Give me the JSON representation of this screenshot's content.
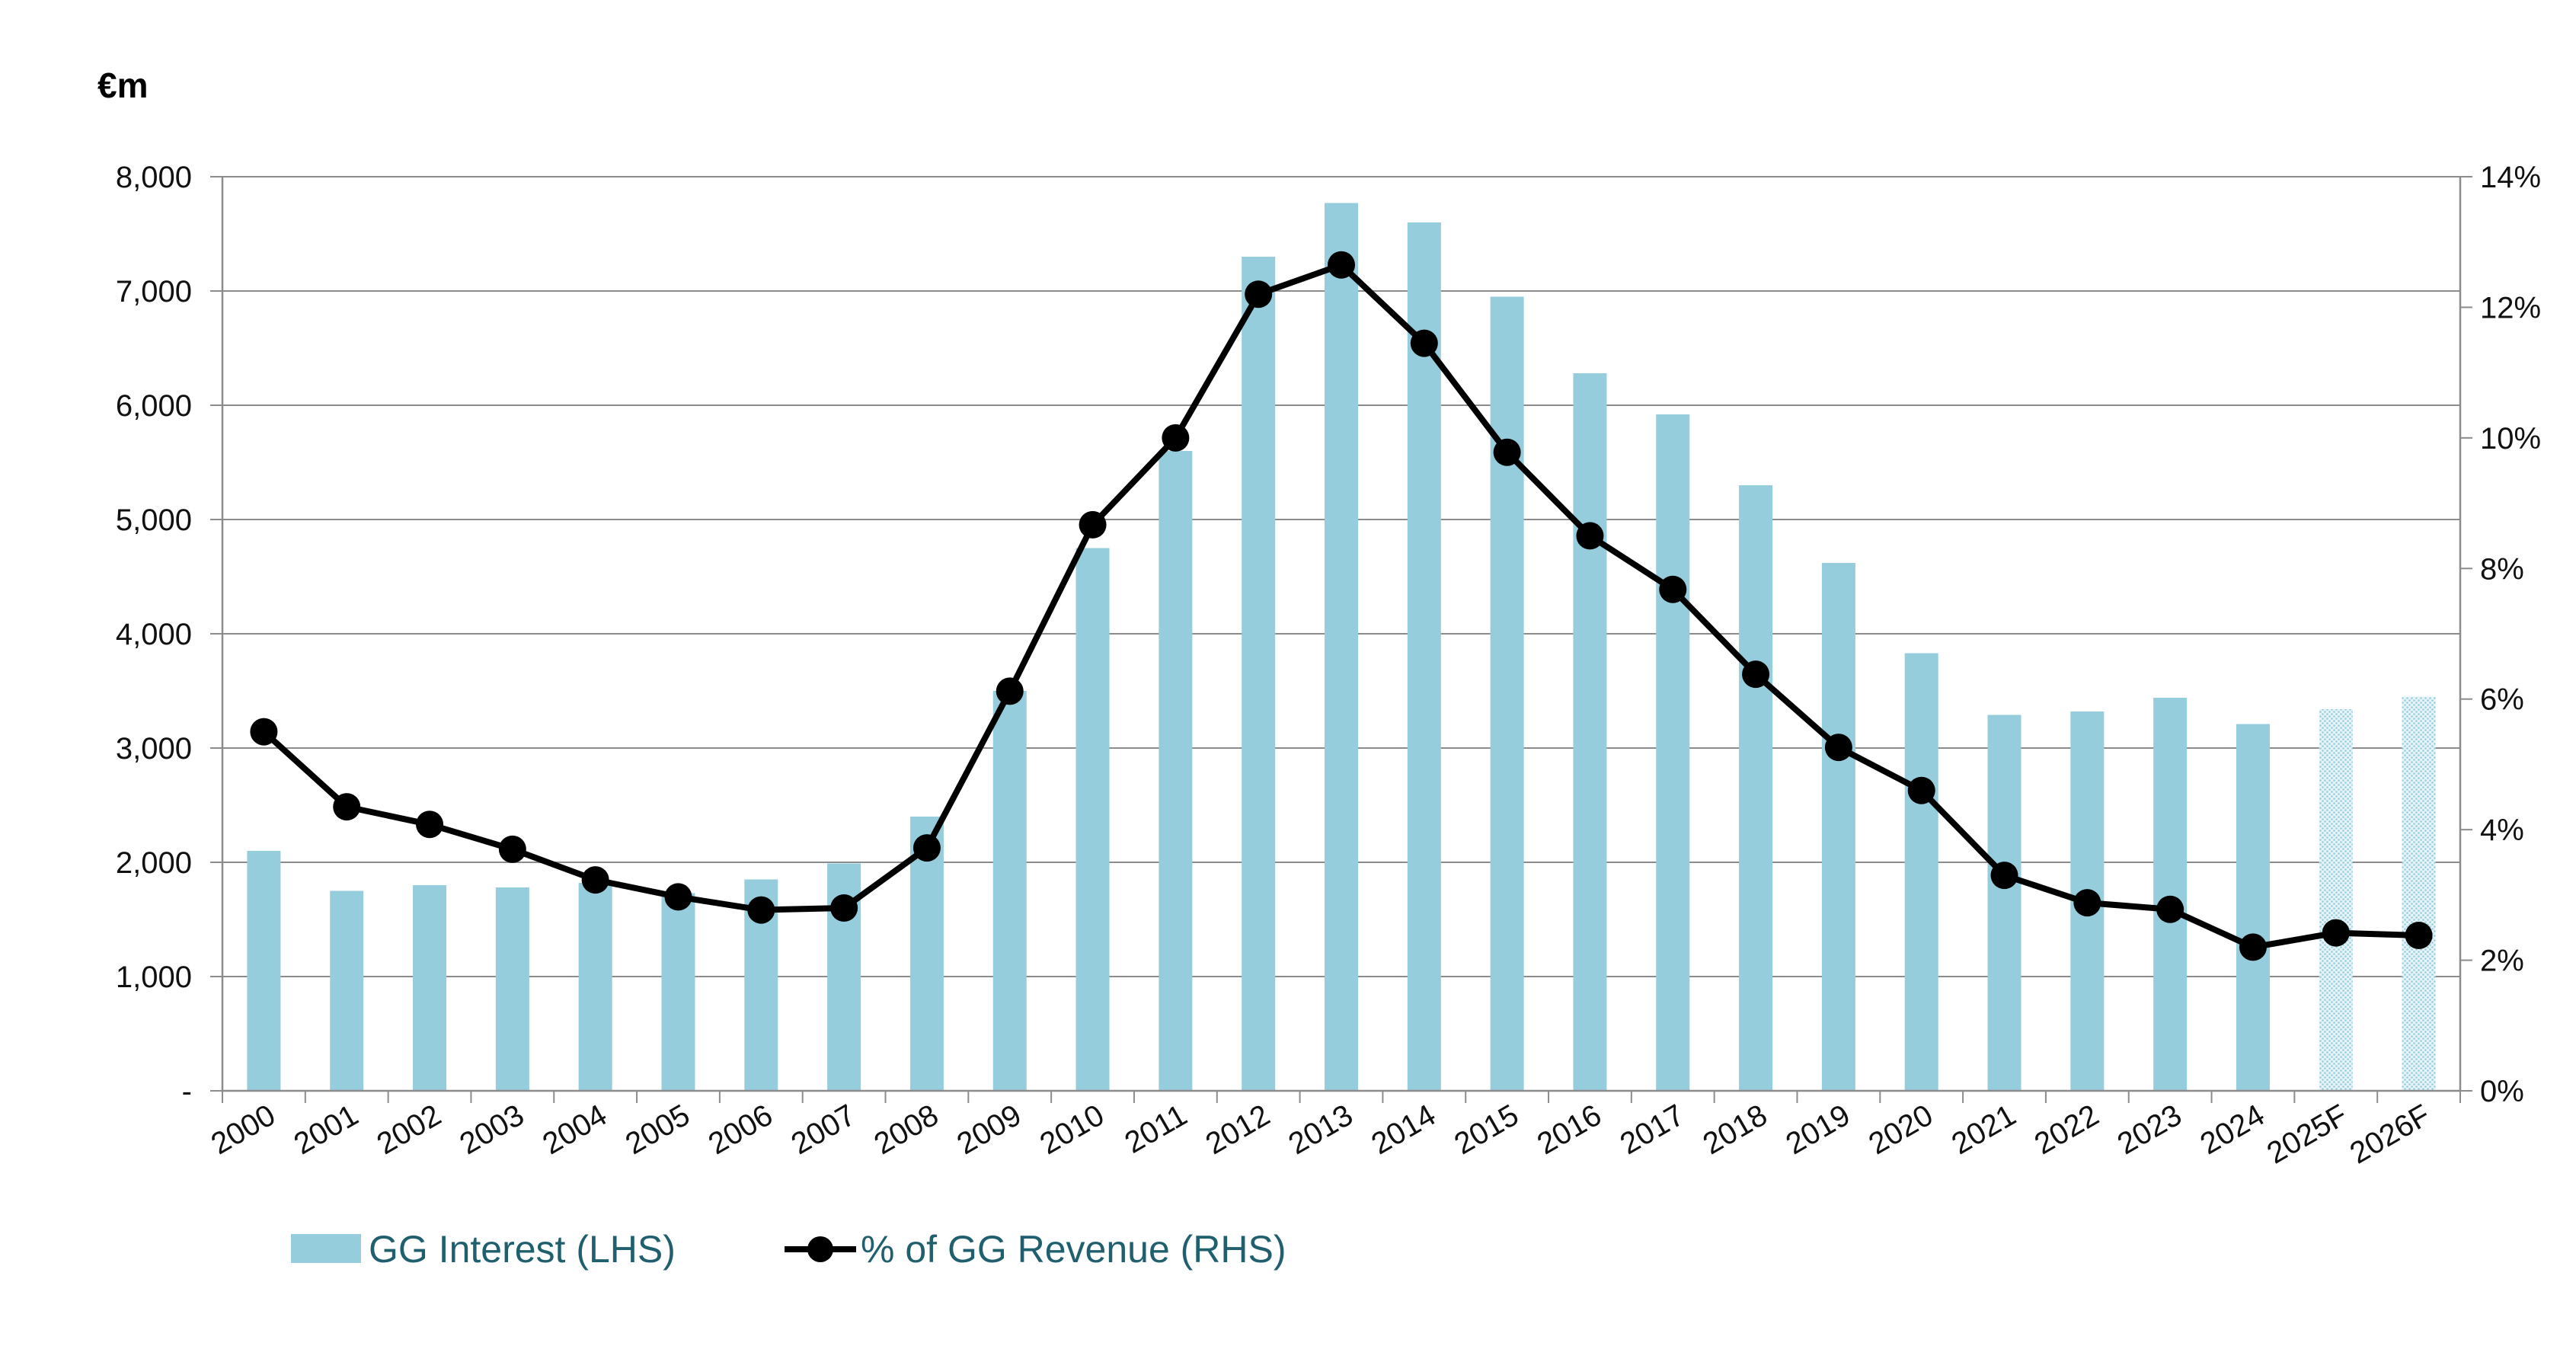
{
  "chart_data": {
    "type": "bar",
    "unit_label": "€m",
    "categories": [
      "2000",
      "2001",
      "2002",
      "2003",
      "2004",
      "2005",
      "2006",
      "2007",
      "2008",
      "2009",
      "2010",
      "2011",
      "2012",
      "2013",
      "2014",
      "2015",
      "2016",
      "2017",
      "2018",
      "2019",
      "2020",
      "2021",
      "2022",
      "2023",
      "2024",
      "2025F",
      "2026F"
    ],
    "series": [
      {
        "name": "GG Interest (LHS)",
        "type": "bar",
        "axis": "left",
        "color": "#96cddd",
        "forecast_from_index": 25,
        "values": [
          2100,
          1750,
          1800,
          1780,
          1820,
          1730,
          1850,
          1990,
          2400,
          3500,
          4750,
          5600,
          7300,
          7770,
          7600,
          6950,
          6280,
          5920,
          5300,
          4620,
          3830,
          3290,
          3320,
          3440,
          3210,
          3340,
          3450
        ]
      },
      {
        "name": "% of GG Revenue (RHS)",
        "type": "line",
        "axis": "right",
        "color": "#000000",
        "values": [
          5.5,
          4.35,
          4.08,
          3.7,
          3.23,
          2.97,
          2.77,
          2.8,
          3.72,
          6.12,
          8.67,
          10.0,
          12.2,
          12.65,
          11.45,
          9.78,
          8.5,
          7.68,
          6.38,
          5.26,
          4.6,
          3.3,
          2.88,
          2.78,
          2.2,
          2.42,
          2.38
        ]
      }
    ],
    "y_left": {
      "ylim": [
        0,
        8000
      ],
      "ticks": [
        "-",
        "1,000",
        "2,000",
        "3,000",
        "4,000",
        "5,000",
        "6,000",
        "7,000",
        "8,000"
      ]
    },
    "y_right": {
      "ylim": [
        0,
        14
      ],
      "ticks": [
        "0%",
        "2%",
        "4%",
        "6%",
        "8%",
        "10%",
        "12%",
        "14%"
      ]
    },
    "grid": true,
    "legend_position": "bottom-left",
    "title": "",
    "xlabel": "",
    "ylabel": ""
  },
  "legend": {
    "bar_label": "GG Interest (LHS)",
    "line_label": "% of GG Revenue (RHS)"
  }
}
